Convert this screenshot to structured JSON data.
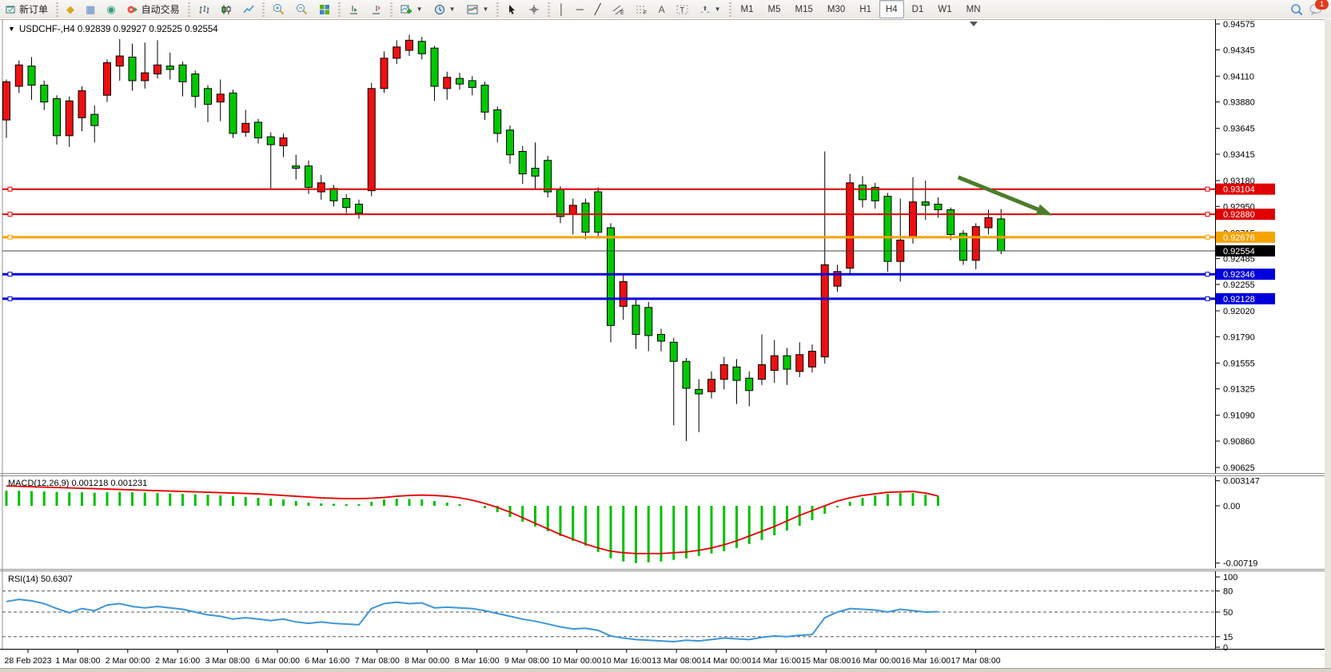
{
  "toolbar": {
    "new_order_label": "新订单",
    "auto_trading_label": "自动交易",
    "timeframes": [
      "M1",
      "M5",
      "M15",
      "M30",
      "H1",
      "H4",
      "D1",
      "W1",
      "MN"
    ],
    "active_timeframe": "H4",
    "notification_count": "1"
  },
  "chart_data": {
    "type": "candlestick",
    "title": "USDCHF-,H4",
    "ohlc_text": "0.92839 0.92927 0.92525 0.92554",
    "colors": {
      "bull": "#ee1010",
      "bear": "#00c800",
      "wick": "#000000",
      "red_line": "#e00000",
      "orange_line": "#f5a300",
      "blue_line": "#0000dc",
      "bid_line": "#444444",
      "macd_hist": "#00c000",
      "macd_signal": "#e80000",
      "rsi_line": "#3e96d8",
      "arrow": "#4c7d2b",
      "axis_text": "#000000"
    },
    "price_axis_ticks": [
      0.94575,
      0.94345,
      0.9411,
      0.9388,
      0.93645,
      0.93415,
      0.9318,
      0.9295,
      0.92715,
      0.92485,
      0.92255,
      0.9202,
      0.9179,
      0.91555,
      0.91325,
      0.9109,
      0.9086,
      0.90625
    ],
    "hlines": [
      {
        "price": 0.93104,
        "label": "0.93104",
        "color": "#e00000",
        "width": 2
      },
      {
        "price": 0.9288,
        "label": "0.92880",
        "color": "#e00000",
        "width": 2
      },
      {
        "price": 0.92676,
        "label": "0.92676",
        "color": "#f5a300",
        "width": 3
      },
      {
        "price": 0.92346,
        "label": "0.92346",
        "color": "#0000dc",
        "width": 3
      },
      {
        "price": 0.92128,
        "label": "0.92128",
        "color": "#0000dc",
        "width": 3
      }
    ],
    "current_price": {
      "price": 0.92554,
      "label": "0.92554"
    },
    "time_labels": [
      "28 Feb 2023",
      "1 Mar 08:00",
      "2 Mar 00:00",
      "2 Mar 16:00",
      "3 Mar 08:00",
      "6 Mar 00:00",
      "6 Mar 16:00",
      "7 Mar 08:00",
      "8 Mar 00:00",
      "8 Mar 16:00",
      "9 Mar 08:00",
      "10 Mar 00:00",
      "10 Mar 16:00",
      "13 Mar 08:00",
      "14 Mar 00:00",
      "14 Mar 16:00",
      "15 Mar 08:00",
      "16 Mar 00:00",
      "16 Mar 16:00",
      "17 Mar 08:00"
    ],
    "candles": [
      [
        "r",
        0.9406,
        0.9372,
        0.9408,
        0.9356
      ],
      [
        "r",
        0.9421,
        0.9402,
        0.9425,
        0.9396
      ],
      [
        "g",
        0.942,
        0.9403,
        0.9428,
        0.939
      ],
      [
        "g",
        0.9403,
        0.9388,
        0.9407,
        0.9381
      ],
      [
        "g",
        0.9391,
        0.9358,
        0.9394,
        0.935
      ],
      [
        "r",
        0.9389,
        0.9358,
        0.9393,
        0.9348
      ],
      [
        "r",
        0.9398,
        0.9374,
        0.9402,
        0.9362
      ],
      [
        "g",
        0.9377,
        0.9367,
        0.9385,
        0.9352
      ],
      [
        "r",
        0.9423,
        0.9394,
        0.9426,
        0.9388
      ],
      [
        "r",
        0.9429,
        0.942,
        0.9444,
        0.9407
      ],
      [
        "g",
        0.9428,
        0.9407,
        0.944,
        0.9398
      ],
      [
        "r",
        0.9414,
        0.9407,
        0.9441,
        0.94
      ],
      [
        "r",
        0.9421,
        0.9413,
        0.9443,
        0.9409
      ],
      [
        "g",
        0.942,
        0.9417,
        0.9432,
        0.9408
      ],
      [
        "g",
        0.9421,
        0.9406,
        0.9424,
        0.9393
      ],
      [
        "g",
        0.9413,
        0.9393,
        0.9416,
        0.9383
      ],
      [
        "g",
        0.94,
        0.9386,
        0.9403,
        0.937
      ],
      [
        "r",
        0.9395,
        0.9388,
        0.9408,
        0.9371
      ],
      [
        "g",
        0.9396,
        0.936,
        0.9399,
        0.9356
      ],
      [
        "r",
        0.9369,
        0.9361,
        0.9381,
        0.9357
      ],
      [
        "g",
        0.937,
        0.9356,
        0.9373,
        0.9351
      ],
      [
        "g",
        0.9357,
        0.935,
        0.9361,
        0.9311
      ],
      [
        "r",
        0.9356,
        0.9349,
        0.936,
        0.9339
      ],
      [
        "g",
        0.9331,
        0.9329,
        0.9341,
        0.9319
      ],
      [
        "g",
        0.9331,
        0.9312,
        0.9336,
        0.9306
      ],
      [
        "r",
        0.9316,
        0.9308,
        0.9323,
        0.9301
      ],
      [
        "g",
        0.9311,
        0.93,
        0.9314,
        0.9295
      ],
      [
        "g",
        0.9302,
        0.9294,
        0.9306,
        0.9289
      ],
      [
        "g",
        0.9297,
        0.9289,
        0.9301,
        0.9284
      ],
      [
        "r",
        0.94,
        0.9309,
        0.9405,
        0.9304
      ],
      [
        "r",
        0.9427,
        0.94,
        0.9433,
        0.9396
      ],
      [
        "r",
        0.9437,
        0.9427,
        0.9443,
        0.9422
      ],
      [
        "r",
        0.9443,
        0.9434,
        0.9448,
        0.9429
      ],
      [
        "g",
        0.9442,
        0.9431,
        0.9446,
        0.9426
      ],
      [
        "g",
        0.9436,
        0.9402,
        0.9438,
        0.9389
      ],
      [
        "r",
        0.941,
        0.94,
        0.9415,
        0.939
      ],
      [
        "g",
        0.9409,
        0.9404,
        0.9414,
        0.9399
      ],
      [
        "g",
        0.9407,
        0.9401,
        0.9411,
        0.9394
      ],
      [
        "g",
        0.9403,
        0.9379,
        0.9406,
        0.9372
      ],
      [
        "g",
        0.9381,
        0.936,
        0.9384,
        0.9352
      ],
      [
        "g",
        0.9363,
        0.9341,
        0.9367,
        0.9333
      ],
      [
        "g",
        0.9344,
        0.9324,
        0.9349,
        0.9315
      ],
      [
        "g",
        0.9329,
        0.9322,
        0.9352,
        0.9311
      ],
      [
        "g",
        0.9336,
        0.9308,
        0.934,
        0.9303
      ],
      [
        "g",
        0.931,
        0.9286,
        0.9313,
        0.928
      ],
      [
        "r",
        0.9296,
        0.9288,
        0.9302,
        0.927
      ],
      [
        "g",
        0.9298,
        0.9272,
        0.9302,
        0.9266
      ],
      [
        "g",
        0.9308,
        0.9272,
        0.9312,
        0.9268
      ],
      [
        "g",
        0.9276,
        0.9189,
        0.928,
        0.9174
      ],
      [
        "r",
        0.9228,
        0.9206,
        0.9235,
        0.9194
      ],
      [
        "g",
        0.9207,
        0.9181,
        0.9213,
        0.9168
      ],
      [
        "g",
        0.9205,
        0.918,
        0.921,
        0.9166
      ],
      [
        "g",
        0.9181,
        0.9175,
        0.9186,
        0.9166
      ],
      [
        "g",
        0.9174,
        0.9157,
        0.9178,
        0.91
      ],
      [
        "g",
        0.9157,
        0.9133,
        0.916,
        0.9086
      ],
      [
        "g",
        0.9132,
        0.9128,
        0.9141,
        0.9094
      ],
      [
        "r",
        0.9141,
        0.913,
        0.9148,
        0.9124
      ],
      [
        "r",
        0.9154,
        0.9141,
        0.9161,
        0.9132
      ],
      [
        "g",
        0.9152,
        0.914,
        0.9159,
        0.9119
      ],
      [
        "g",
        0.9142,
        0.9131,
        0.9148,
        0.9117
      ],
      [
        "r",
        0.9154,
        0.9141,
        0.9181,
        0.9136
      ],
      [
        "r",
        0.9162,
        0.9149,
        0.9176,
        0.9138
      ],
      [
        "g",
        0.9162,
        0.915,
        0.9169,
        0.9136
      ],
      [
        "r",
        0.9163,
        0.9148,
        0.9174,
        0.9143
      ],
      [
        "r",
        0.9166,
        0.9152,
        0.9172,
        0.9147
      ],
      [
        "r",
        0.9243,
        0.9161,
        0.9344,
        0.9155
      ],
      [
        "r",
        0.9237,
        0.9224,
        0.9243,
        0.9219
      ],
      [
        "r",
        0.9316,
        0.924,
        0.9324,
        0.9235
      ],
      [
        "g",
        0.9314,
        0.9301,
        0.9322,
        0.9294
      ],
      [
        "g",
        0.9312,
        0.93,
        0.9316,
        0.9293
      ],
      [
        "g",
        0.9304,
        0.9246,
        0.9307,
        0.9237
      ],
      [
        "r",
        0.9265,
        0.9246,
        0.9302,
        0.9228
      ],
      [
        "r",
        0.9299,
        0.9267,
        0.9321,
        0.9262
      ],
      [
        "g",
        0.9299,
        0.9296,
        0.9318,
        0.9283
      ],
      [
        "g",
        0.9297,
        0.9292,
        0.9303,
        0.9285
      ],
      [
        "g",
        0.9292,
        0.927,
        0.9294,
        0.9265
      ],
      [
        "g",
        0.9271,
        0.9247,
        0.9274,
        0.9243
      ],
      [
        "r",
        0.9277,
        0.9247,
        0.928,
        0.9239
      ],
      [
        "r",
        0.9285,
        0.9276,
        0.9292,
        0.927
      ],
      [
        "g",
        0.92839,
        0.92554,
        0.92927,
        0.92525
      ]
    ],
    "macd": {
      "label": "MACD(12,26,9) 0.001218 0.001231",
      "axis_labels": [
        "0.003147",
        "0.00",
        "-0.00719"
      ],
      "axis_values": [
        0.003147,
        0.0,
        -0.00719
      ],
      "hist": [
        0.0019,
        0.0019,
        0.00185,
        0.0018,
        0.00175,
        0.0017,
        0.0017,
        0.00165,
        0.0017,
        0.00175,
        0.0017,
        0.00165,
        0.0016,
        0.00155,
        0.0015,
        0.00145,
        0.0014,
        0.0013,
        0.0012,
        0.0011,
        0.001,
        0.0009,
        0.0008,
        0.0006,
        0.0004,
        0.0003,
        0.00025,
        0.0002,
        0.0002,
        0.0005,
        0.0008,
        0.0009,
        0.00085,
        0.0008,
        0.0006,
        0.0004,
        0.0002,
        0.0,
        -0.0003,
        -0.0008,
        -0.0014,
        -0.002,
        -0.0026,
        -0.0032,
        -0.0038,
        -0.0044,
        -0.005,
        -0.0058,
        -0.0066,
        -0.007,
        -0.00719,
        -0.0071,
        -0.007,
        -0.0068,
        -0.0066,
        -0.0063,
        -0.006,
        -0.0057,
        -0.0053,
        -0.0048,
        -0.0043,
        -0.0037,
        -0.0031,
        -0.0025,
        -0.0018,
        -0.001,
        -0.0002,
        0.0005,
        0.001,
        0.0013,
        0.0015,
        0.0016,
        0.0016,
        0.0014,
        0.00122
      ],
      "signal": [
        0.0025,
        0.00245,
        0.0024,
        0.00235,
        0.0023,
        0.00225,
        0.0022,
        0.00215,
        0.0021,
        0.00205,
        0.002,
        0.00195,
        0.0019,
        0.00185,
        0.0018,
        0.00175,
        0.0017,
        0.00165,
        0.0016,
        0.00155,
        0.0015,
        0.0014,
        0.0013,
        0.0012,
        0.0011,
        0.001,
        0.00095,
        0.0009,
        0.0009,
        0.00095,
        0.00105,
        0.0012,
        0.0013,
        0.00135,
        0.0013,
        0.0012,
        0.001,
        0.0007,
        0.0003,
        -0.0002,
        -0.0008,
        -0.0015,
        -0.0022,
        -0.0029,
        -0.0036,
        -0.0042,
        -0.0048,
        -0.0053,
        -0.0057,
        -0.0059,
        -0.006,
        -0.006,
        -0.006,
        -0.0059,
        -0.0058,
        -0.0056,
        -0.0053,
        -0.0049,
        -0.0044,
        -0.0038,
        -0.0032,
        -0.0026,
        -0.0019,
        -0.0012,
        -0.0006,
        0.0,
        0.0006,
        0.001,
        0.0013,
        0.0015,
        0.0017,
        0.00175,
        0.0018,
        0.0016,
        0.00123
      ]
    },
    "rsi": {
      "label": "RSI(14) 50.6307",
      "axis_labels": [
        "100",
        "80",
        "50",
        "15",
        "0"
      ],
      "axis_values": [
        100,
        80,
        50,
        15,
        0
      ],
      "dashed_levels": [
        80,
        50,
        15
      ],
      "values": [
        65,
        68,
        66,
        62,
        55,
        49,
        55,
        52,
        60,
        62,
        58,
        56,
        58,
        56,
        54,
        50,
        46,
        44,
        40,
        42,
        40,
        38,
        40,
        36,
        34,
        36,
        34,
        33,
        32,
        55,
        62,
        64,
        62,
        63,
        56,
        57,
        56,
        55,
        52,
        48,
        44,
        40,
        37,
        33,
        29,
        26,
        27,
        24,
        16,
        13,
        11,
        10,
        9,
        8,
        10,
        9,
        11,
        13,
        12,
        11,
        14,
        16,
        15,
        17,
        18,
        42,
        50,
        55,
        54,
        53,
        50,
        54,
        52,
        50,
        50.6
      ]
    },
    "arrow": {
      "from_index": 75.6,
      "from_price": 0.9321,
      "to_index": 83.1,
      "to_price": 0.9287
    }
  }
}
